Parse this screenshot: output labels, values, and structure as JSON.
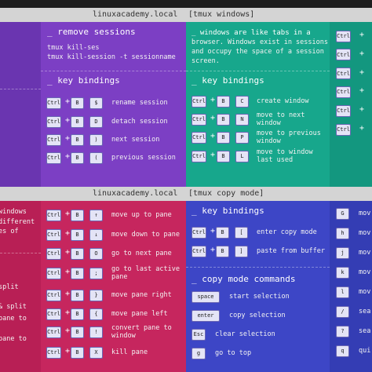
{
  "top_header": {
    "host": "linuxacademy.local",
    "mode": "[tmux windows]"
  },
  "bottom_header": {
    "host": "linuxacademy.local",
    "mode": "[tmux copy mode]"
  },
  "separator": "+",
  "sessions_panel": {
    "title": "_ remove sessions",
    "commands": [
      "tmux kill-ses",
      "tmux kill-session -t sessionname"
    ],
    "bindings_title": "_ key bindings",
    "bindings": [
      {
        "keys": [
          "Ctrl",
          "B",
          "$"
        ],
        "description": [
          "rename session"
        ]
      },
      {
        "keys": [
          "Ctrl",
          "B",
          "D"
        ],
        "description": [
          "detach session"
        ]
      },
      {
        "keys": [
          "Ctrl",
          "B",
          ")"
        ],
        "description": [
          "next session"
        ]
      },
      {
        "keys": [
          "Ctrl",
          "B",
          "("
        ],
        "description": [
          "previous session"
        ]
      }
    ]
  },
  "windows_panel": {
    "intro": [
      "_ windows are like tabs in a",
      "browser. Windows exist in sessions",
      "and occupy the space of a session",
      "screen."
    ],
    "bindings_title": "_ key bindings",
    "bindings": [
      {
        "keys": [
          "Ctrl",
          "B",
          "C"
        ],
        "description": [
          "create window"
        ]
      },
      {
        "keys": [
          "Ctrl",
          "B",
          "N"
        ],
        "description": [
          "move to next",
          "window"
        ]
      },
      {
        "keys": [
          "Ctrl",
          "B",
          "P"
        ],
        "description": [
          "move to previous",
          "window"
        ]
      },
      {
        "keys": [
          "Ctrl",
          "B",
          "L"
        ],
        "description": [
          "move to window",
          "last used"
        ]
      }
    ]
  },
  "top_strip": {
    "keys": [
      "Ctrl",
      "Ctrl",
      "Ctrl",
      "Ctrl",
      "Ctrl",
      "Ctrl"
    ]
  },
  "left_strip": {
    "lines": [
      "windows",
      "different",
      "es of",
      "split",
      "& split",
      "pane to",
      "pane to"
    ]
  },
  "panes_panel": {
    "bindings": [
      {
        "keys": [
          "Ctrl",
          "B",
          "↑"
        ],
        "description": [
          "move up to pane"
        ]
      },
      {
        "keys": [
          "Ctrl",
          "B",
          "↓"
        ],
        "description": [
          "move down to pane"
        ]
      },
      {
        "keys": [
          "Ctrl",
          "B",
          "O"
        ],
        "description": [
          "go to next pane"
        ]
      },
      {
        "keys": [
          "Ctrl",
          "B",
          ";"
        ],
        "description": [
          "go to last active",
          "pane"
        ]
      },
      {
        "keys": [
          "Ctrl",
          "B",
          "}"
        ],
        "description": [
          "move pane right"
        ]
      },
      {
        "keys": [
          "Ctrl",
          "B",
          "{"
        ],
        "description": [
          "move pane left"
        ]
      },
      {
        "keys": [
          "Ctrl",
          "B",
          "!"
        ],
        "description": [
          "convert pane to",
          "window"
        ]
      },
      {
        "keys": [
          "Ctrl",
          "B",
          "X"
        ],
        "description": [
          "kill pane"
        ]
      }
    ]
  },
  "copy_panel": {
    "bindings_title": "_ key bindings",
    "bindings": [
      {
        "keys": [
          "Ctrl",
          "B",
          "["
        ],
        "description": [
          "enter copy mode"
        ]
      },
      {
        "keys": [
          "Ctrl",
          "B",
          "]"
        ],
        "description": [
          "paste from buffer"
        ]
      }
    ],
    "commands_title": "_ copy mode commands",
    "commands": [
      {
        "key": "space",
        "description": "start selection"
      },
      {
        "key": "enter",
        "description": "copy selection"
      },
      {
        "key": "Esc",
        "description": "clear selection"
      },
      {
        "key": "g",
        "description": "go to top"
      }
    ]
  },
  "bottom_strip": {
    "keys": [
      "G",
      "h",
      "j",
      "k",
      "l",
      "/",
      "?",
      "q"
    ],
    "labels": [
      "mov",
      "mov",
      "mov",
      "mov",
      "mov",
      "sea",
      "sea",
      "qui"
    ]
  }
}
